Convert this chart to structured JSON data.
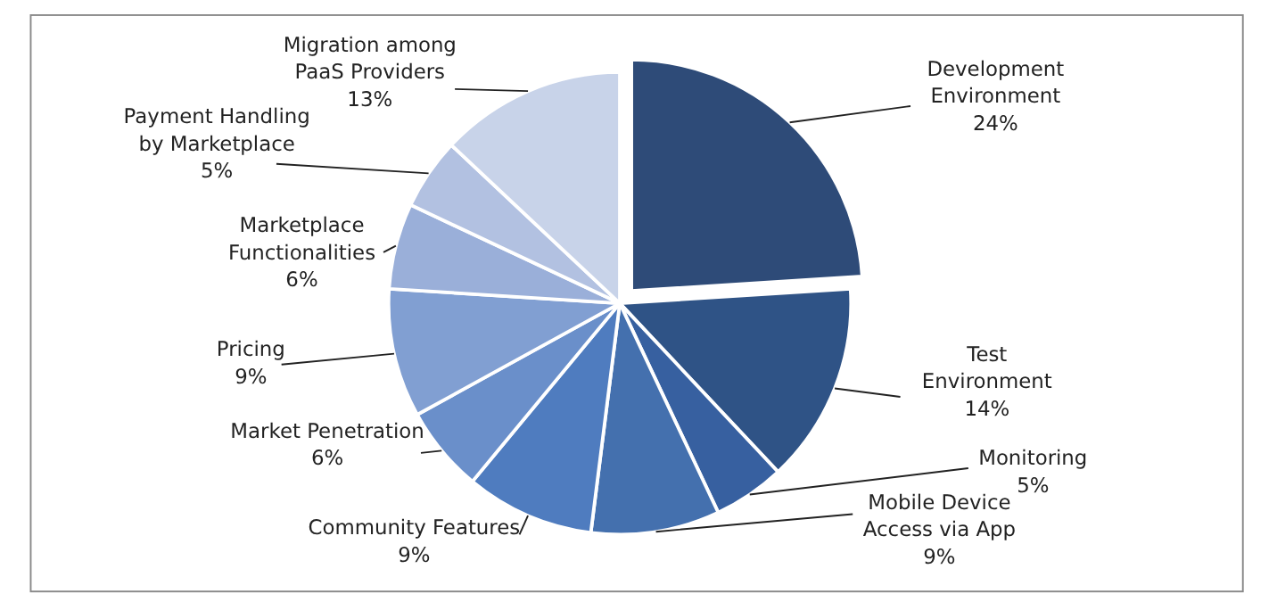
{
  "chart_data": {
    "type": "pie",
    "categories": [
      "Development Environment",
      "Test Environment",
      "Monitoring",
      "Mobile Device Access via App",
      "Community Features",
      "Market Penetration",
      "Pricing",
      "Marketplace Functionalities",
      "Payment Handling by Marketplace",
      "Migration among PaaS Providers"
    ],
    "values": [
      24,
      14,
      5,
      9,
      9,
      6,
      9,
      6,
      5,
      13
    ],
    "value_labels": [
      "24%",
      "14%",
      "5%",
      "9%",
      "9%",
      "6%",
      "9%",
      "6%",
      "5%",
      "13%"
    ],
    "colors": [
      "#2e4b78",
      "#2f5386",
      "#3760a0",
      "#4470ae",
      "#4f7cbf",
      "#6a8fca",
      "#819fd2",
      "#9aafd9",
      "#b2c1e1",
      "#c8d3e9"
    ]
  }
}
